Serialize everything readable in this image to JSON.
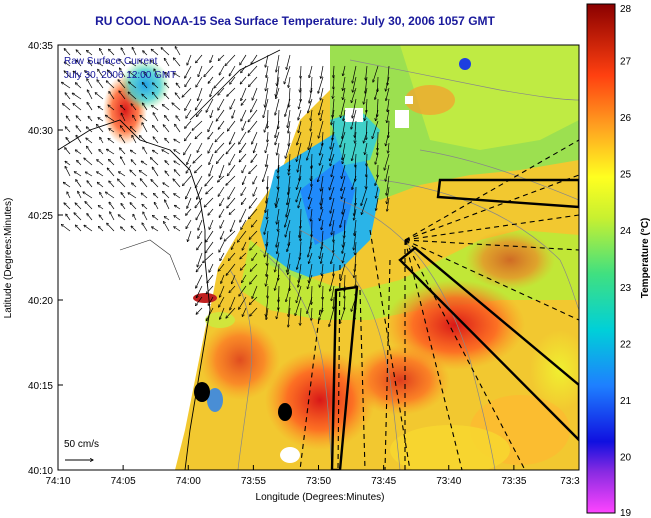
{
  "title": "RU COOL  NOAA-15  Sea Surface Temperature:  July 30, 2006 1057 GMT",
  "legend": {
    "line1": "Raw Surface Current",
    "line2": "July 30, 2006 12:00 GMT",
    "scale_label": "50 cm/s"
  },
  "axes": {
    "xlabel": "Longitude (Degrees:Minutes)",
    "ylabel": "Latitude (Degrees:Minutes)",
    "x_ticks": [
      "74:10",
      "74:05",
      "74:00",
      "73:55",
      "73:50",
      "73:45",
      "73:40",
      "73:35",
      "73:3"
    ],
    "y_ticks": [
      "40:35",
      "40:30",
      "40:25",
      "40:20",
      "40:15",
      "40:10"
    ]
  },
  "colorbar": {
    "title": "Temperature (°C)",
    "ticks": [
      "28",
      "27",
      "26",
      "25",
      "24",
      "23",
      "22",
      "21",
      "20",
      "19"
    ],
    "min": 19,
    "max": 28
  },
  "colors": {
    "title_blue": "#1a1a9c",
    "land": "#ffffff"
  }
}
